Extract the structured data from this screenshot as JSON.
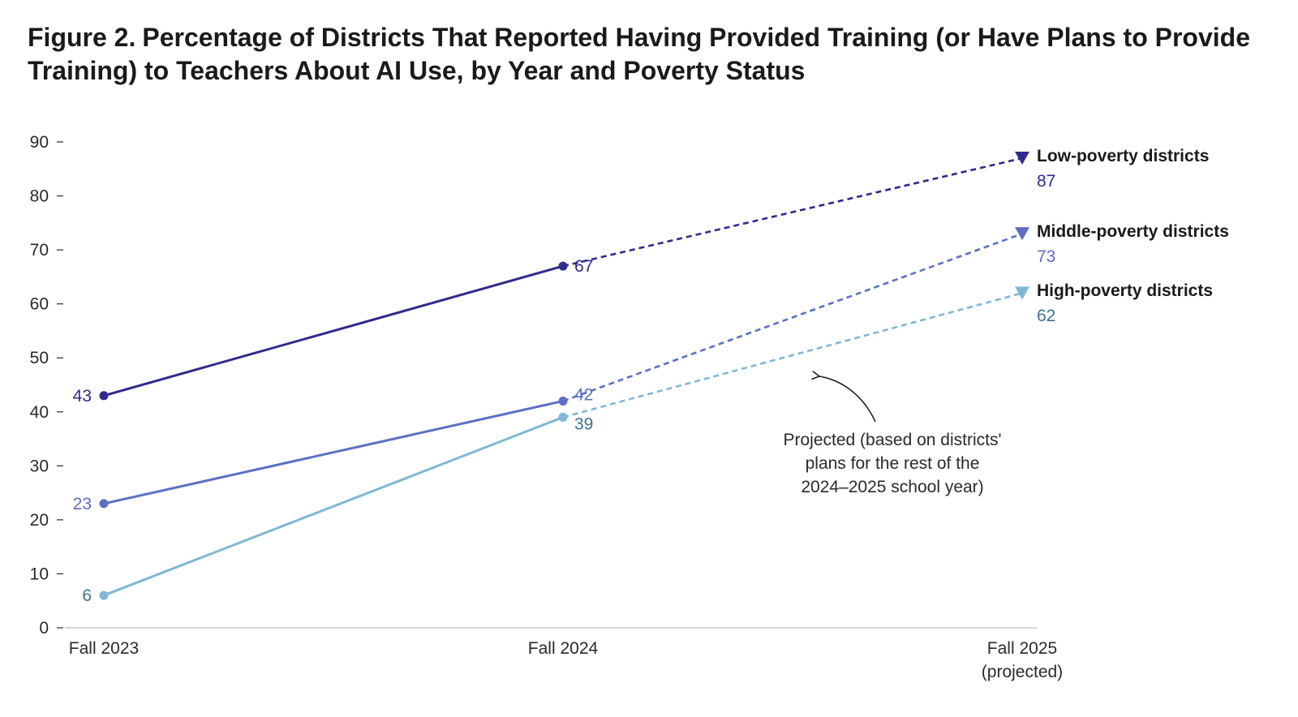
{
  "figure": {
    "label": "Figure 2.",
    "title": "Percentage of Districts That Reported Having Provided Training (or Have Plans to Provide Training) to Teachers About AI Use, by Year and Poverty Status"
  },
  "chart_data": {
    "type": "line",
    "title": "Figure 2. Percentage of Districts That Reported Having Provided Training (or Have Plans to Provide Training) to Teachers About AI Use, by Year and Poverty Status",
    "xlabel": "",
    "ylabel": "",
    "categories": [
      {
        "line1": "Fall 2023",
        "line2": ""
      },
      {
        "line1": "Fall 2024",
        "line2": ""
      },
      {
        "line1": "Fall 2025",
        "line2": "(projected)"
      }
    ],
    "ylim": [
      0,
      90
    ],
    "yticks": [
      0,
      10,
      20,
      30,
      40,
      50,
      60,
      70,
      80,
      90
    ],
    "grid": false,
    "legend": "right (direct labels at line ends)",
    "projected_from_index": 1,
    "series": [
      {
        "name": "Low-poverty districts",
        "values": [
          43,
          67,
          87
        ],
        "color": "#2f2a8c"
      },
      {
        "name": "Middle-poverty districts",
        "values": [
          23,
          42,
          73
        ],
        "color": "#5c6fc4"
      },
      {
        "name": "High-poverty districts",
        "values": [
          6,
          39,
          62
        ],
        "color": "#7fb8d3",
        "label_color": "#3f7191"
      }
    ],
    "annotation": {
      "lines": [
        "Projected (based on districts'",
        "plans for the rest of the",
        "2024–2025 school year)"
      ]
    }
  }
}
